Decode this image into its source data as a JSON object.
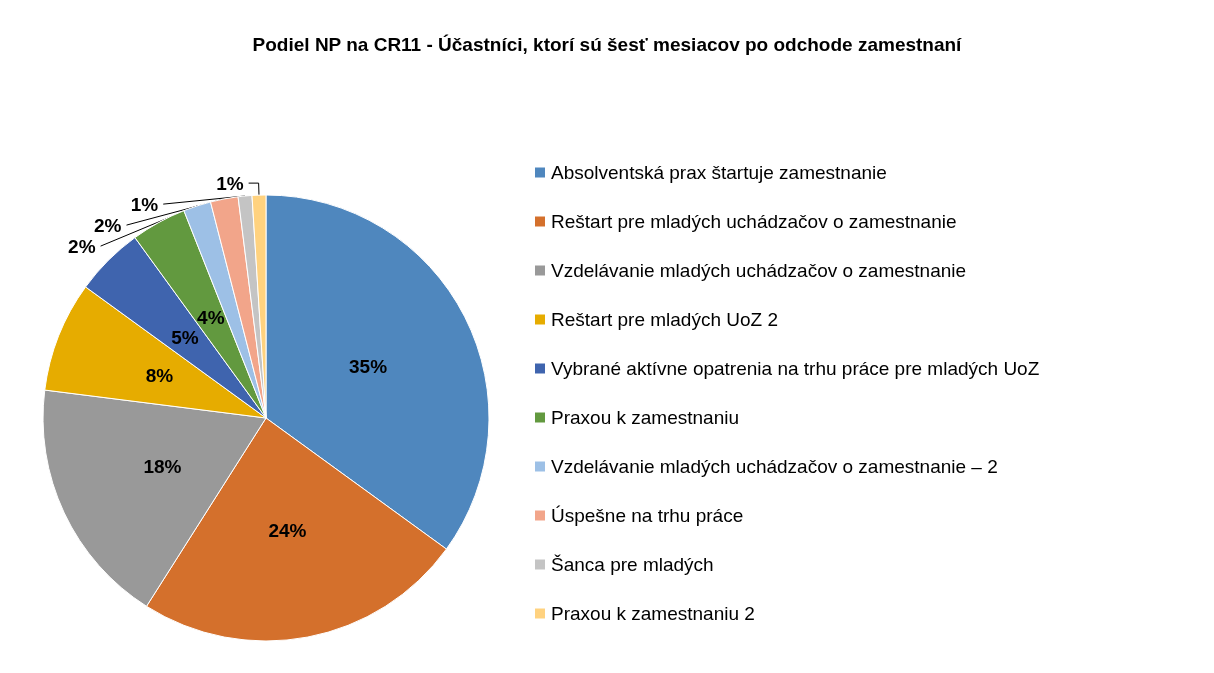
{
  "chart_data": {
    "type": "pie",
    "title": "Podiel NP na CR11 - Účastníci, ktorí sú šesť mesiacov po odchode zamestnaní",
    "categories": [
      "Absolventská prax štartuje zamestnanie",
      "Reštart pre mladých uchádzačov o zamestnanie",
      "Vzdelávanie mladých uchádzačov o zamestnanie",
      "Reštart pre mladých UoZ 2",
      "Vybrané aktívne opatrenia na trhu práce pre mladých UoZ",
      "Praxou k zamestnaniu",
      "Vzdelávanie mladých uchádzačov o zamestnanie – 2",
      "Úspešne na trhu práce",
      "Šanca pre mladých",
      "Praxou k zamestnaniu 2"
    ],
    "values": [
      35,
      24,
      18,
      8,
      5,
      4,
      2,
      2,
      1,
      1
    ],
    "colors": [
      "#4f87be",
      "#d4702c",
      "#999999",
      "#e6ac00",
      "#3f64ae",
      "#62993f",
      "#9dc0e6",
      "#f2a58a",
      "#c4c4c4",
      "#ffd27f"
    ],
    "value_labels": [
      "35%",
      "24%",
      "18%",
      "8%",
      "5%",
      "4%",
      "2%",
      "2%",
      "1%",
      "1%"
    ],
    "legend": "right"
  }
}
